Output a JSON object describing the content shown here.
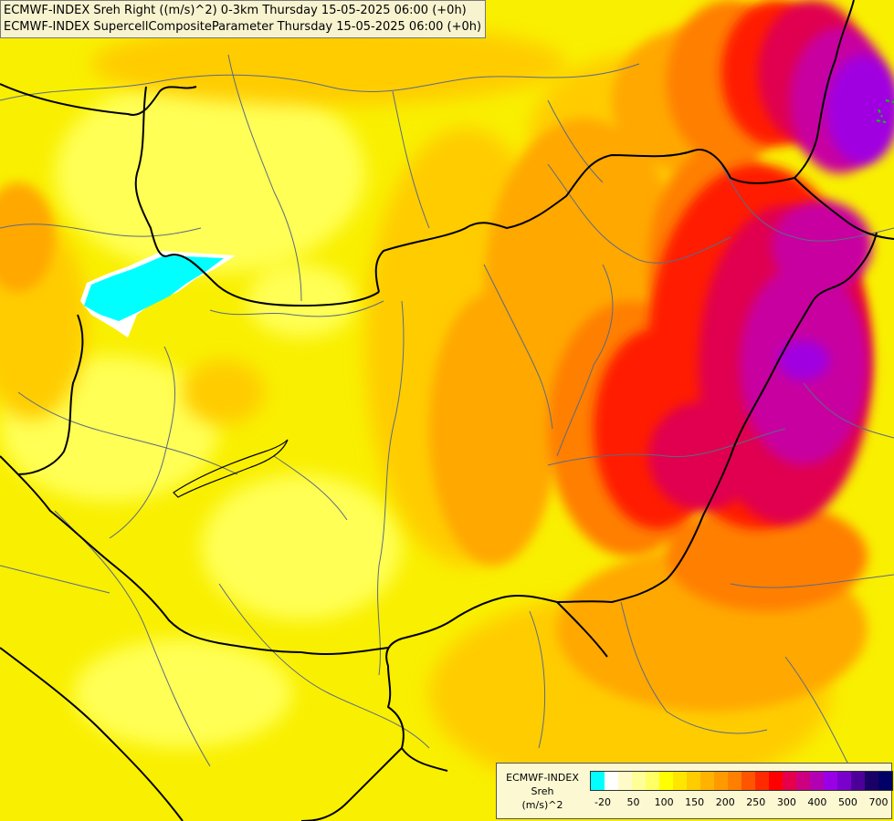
{
  "titles": {
    "line1": "ECMWF-INDEX Sreh Right ((m/s)^2) 0-3km Thursday 15-05-2025 06:00 (+0h)",
    "line2": "ECMWF-INDEX SupercellCompositeParameter Thursday 15-05-2025 06:00 (+0h)"
  },
  "legend": {
    "line1": "ECMWF-INDEX",
    "line2": "Sreh",
    "line3": "(m/s)^2",
    "swatches": [
      "#00ffff",
      "#ffffff",
      "#fffbc8",
      "#ffff99",
      "#ffff66",
      "#ffff00",
      "#ffe600",
      "#ffcc00",
      "#ffb300",
      "#ff9900",
      "#ff7f00",
      "#ff5500",
      "#ff2a00",
      "#ff0000",
      "#e6004c",
      "#cc0080",
      "#b300b3",
      "#9900e6",
      "#7a00cc",
      "#4d0099",
      "#1a0066",
      "#000066"
    ],
    "ticks": [
      "-20",
      "50",
      "100",
      "150",
      "200",
      "250",
      "300",
      "400",
      "500",
      "700"
    ]
  },
  "colors": {
    "background": "#f7ef00",
    "border_country": "#000000",
    "border_region": "#5b6a86",
    "negative_area": "#00ffff",
    "dashed_contour": "#00cc00"
  }
}
